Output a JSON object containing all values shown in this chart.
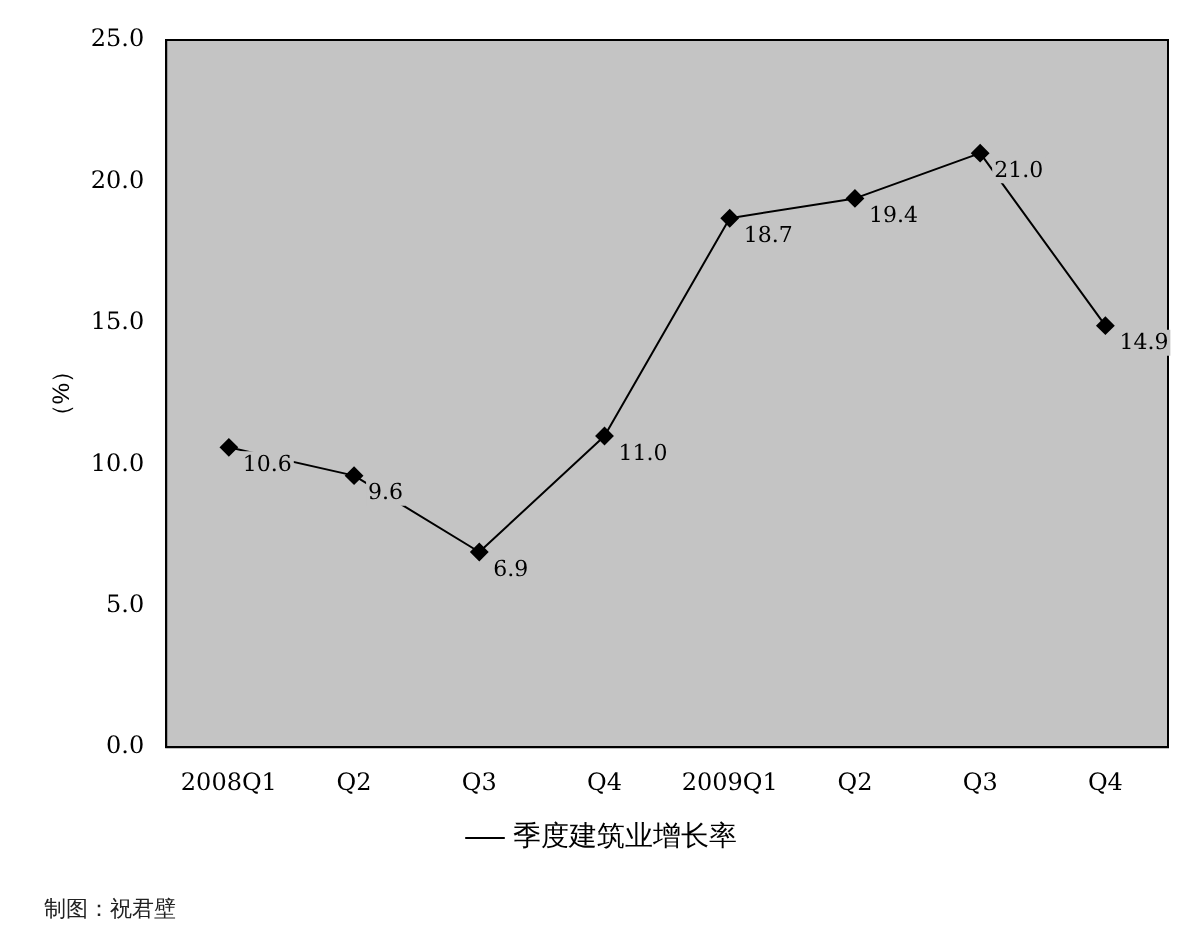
{
  "chart_data": {
    "type": "line",
    "ylabel": "（%）",
    "categories": [
      "2008Q1",
      "Q2",
      "Q3",
      "Q4",
      "2009Q1",
      "Q2",
      "Q3",
      "Q4"
    ],
    "series": [
      {
        "name": "季度建筑业增长率",
        "color": "#000000",
        "values": [
          10.6,
          9.6,
          6.9,
          11.0,
          18.7,
          19.4,
          21.0,
          14.9
        ],
        "value_labels": [
          "10.6",
          "9.6",
          "6.9",
          "11.0",
          "18.7",
          "19.4",
          "21.0",
          "14.9"
        ]
      }
    ],
    "ylim": [
      0,
      25
    ],
    "yticks": [
      {
        "value": 0,
        "label": "0.0"
      },
      {
        "value": 5,
        "label": "5.0"
      },
      {
        "value": 10,
        "label": "10.0"
      },
      {
        "value": 15,
        "label": "15.0"
      },
      {
        "value": 20,
        "label": "20.0"
      },
      {
        "value": 25,
        "label": "25.0"
      }
    ],
    "grid": false,
    "legend": "bottom",
    "marker": "diamond",
    "line_style": "solid",
    "annotations": [
      "制图：祝君壁"
    ]
  }
}
